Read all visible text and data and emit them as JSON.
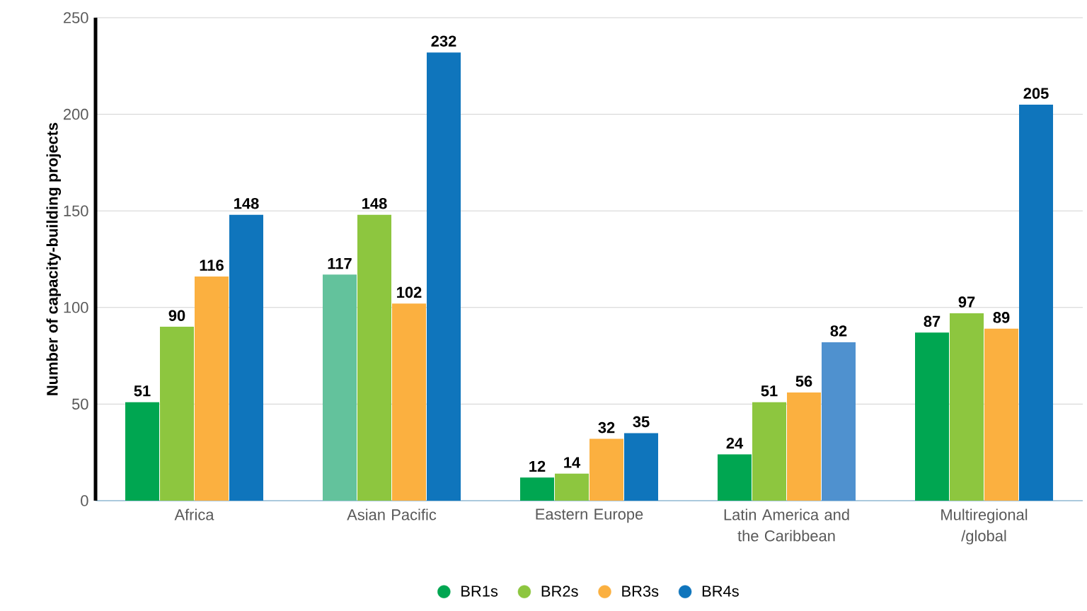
{
  "chart_data": {
    "type": "bar",
    "ylabel": "Number of capacity-building projects",
    "categories": [
      "Africa",
      "Asian Pacific",
      "Eastern Europe",
      "Latin America and the Caribbean",
      "Multiregional /global"
    ],
    "series": [
      {
        "name": "BR1s",
        "color": "#00a651",
        "colors": [
          "#00a651",
          "#63c29c",
          "#00a651",
          "#00a651",
          "#00a651"
        ],
        "values": [
          51,
          117,
          12,
          24,
          87
        ]
      },
      {
        "name": "BR2s",
        "color": "#8dc63f",
        "values": [
          90,
          148,
          14,
          51,
          97
        ]
      },
      {
        "name": "BR3s",
        "color": "#fbb040",
        "values": [
          116,
          102,
          32,
          56,
          89
        ]
      },
      {
        "name": "BR4s",
        "color": "#0f75bc",
        "colors": [
          "#0f75bc",
          "#0f75bc",
          "#0f75bc",
          "#4f91cf",
          "#0f75bc"
        ],
        "values": [
          148,
          232,
          35,
          82,
          205
        ]
      }
    ],
    "ylim": [
      0,
      250
    ],
    "yticks": [
      0,
      50,
      100,
      150,
      200,
      250
    ],
    "grid": "y",
    "legend": "bottom",
    "data_labels": true
  }
}
